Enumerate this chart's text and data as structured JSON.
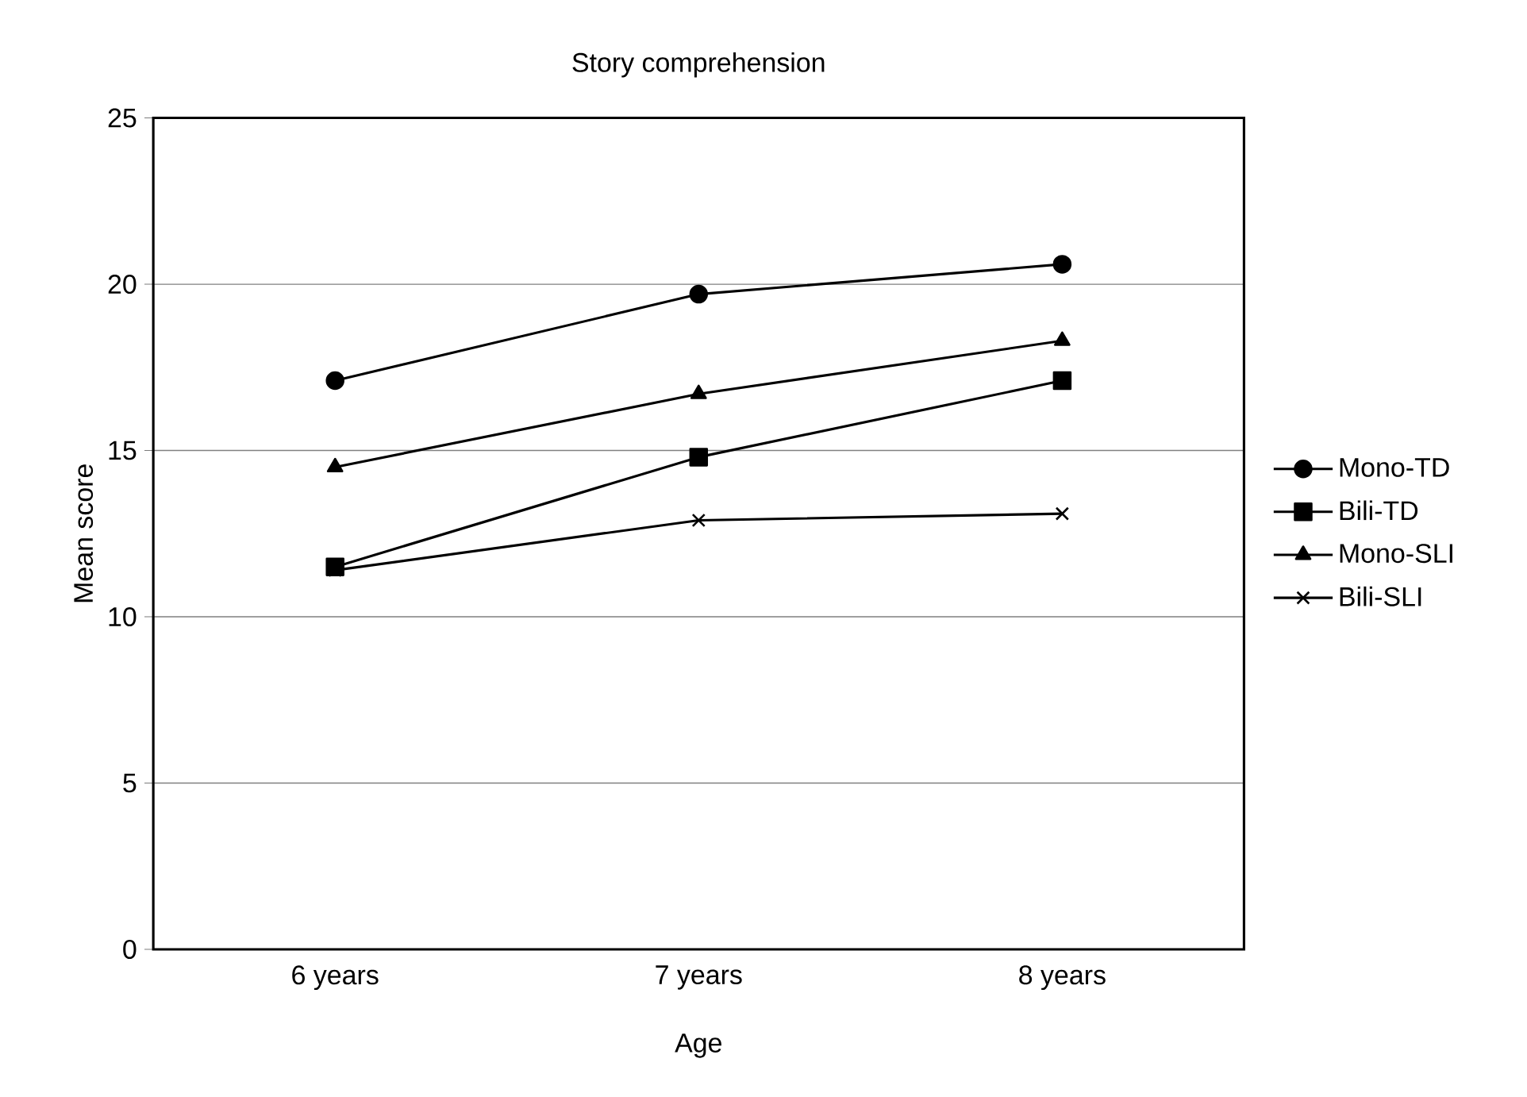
{
  "chart_data": {
    "type": "line",
    "title": "Story comprehension",
    "xlabel": "Age",
    "ylabel": "Mean score",
    "categories": [
      "6 years",
      "7 years",
      "8 years"
    ],
    "series": [
      {
        "name": "Mono-TD",
        "color": "#000000",
        "marker": "circle",
        "values": [
          17.1,
          19.7,
          20.6
        ]
      },
      {
        "name": "Bili-TD",
        "color": "#000000",
        "marker": "square",
        "values": [
          11.5,
          14.8,
          17.1
        ]
      },
      {
        "name": "Mono-SLI",
        "color": "#000000",
        "marker": "triangle",
        "values": [
          14.5,
          16.7,
          18.3
        ]
      },
      {
        "name": "Bili-SLI",
        "color": "#000000",
        "marker": "cross",
        "values": [
          11.4,
          12.9,
          13.1
        ]
      }
    ],
    "ylim": [
      0,
      25
    ],
    "yticks": [
      0,
      5,
      10,
      15,
      20,
      25
    ],
    "grid": "y",
    "legend": "right",
    "line_style": "solid"
  }
}
